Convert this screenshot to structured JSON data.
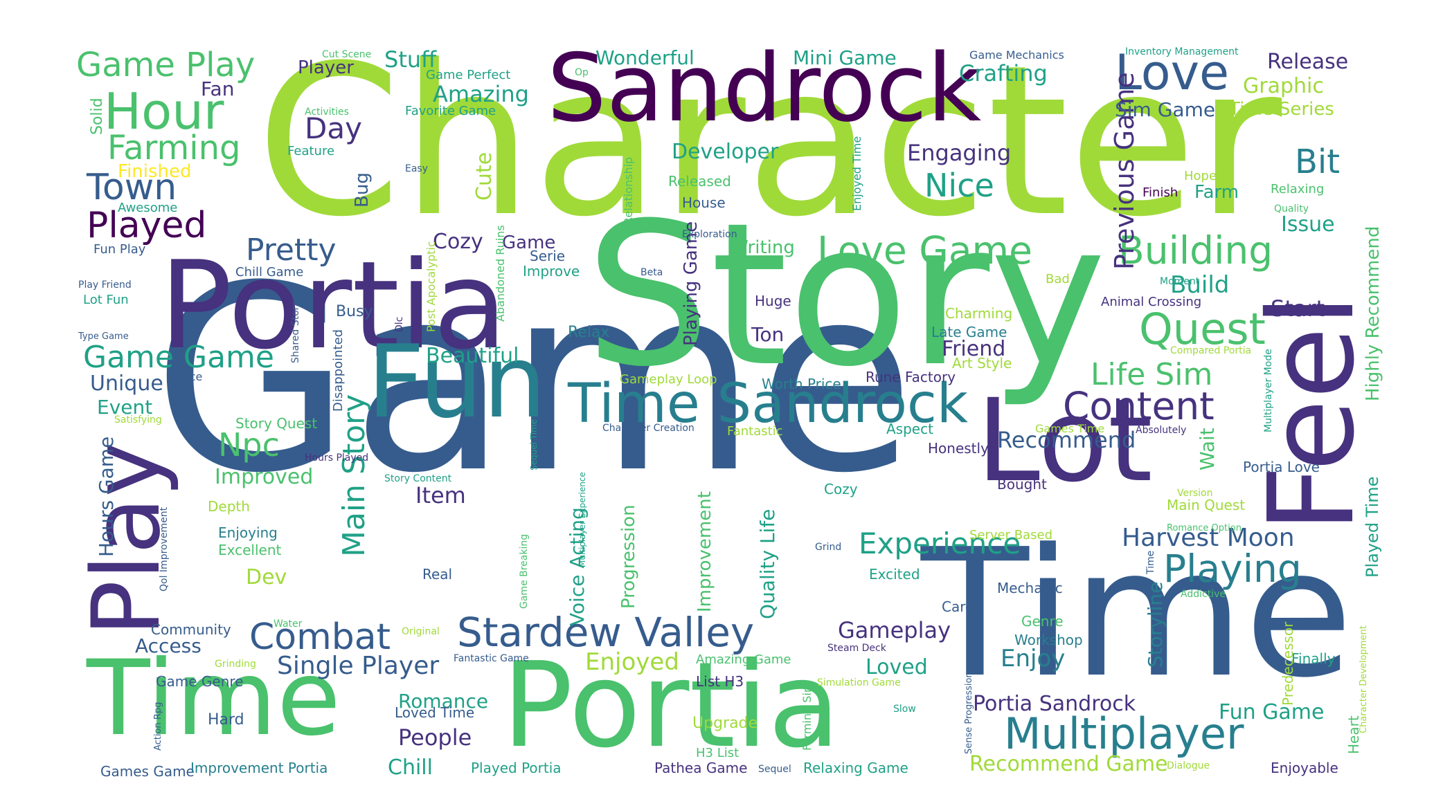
{
  "palette": {
    "lime": "#a0da39",
    "green": "#4ac16d",
    "teal": "#1fa187",
    "blue_teal": "#277f8e",
    "blue": "#365c8d",
    "indigo": "#46327e",
    "purple": "#440154",
    "yellow": "#fde725"
  },
  "words": [
    {
      "text": "Character",
      "color": "lime"
    },
    {
      "text": "Game",
      "color": "blue"
    },
    {
      "text": "Story",
      "color": "green"
    },
    {
      "text": "Time",
      "color": "blue"
    },
    {
      "text": "Portia",
      "color": "indigo"
    },
    {
      "text": "Portia",
      "color": "green"
    },
    {
      "text": "Time",
      "color": "green"
    },
    {
      "text": "Sandrock",
      "color": "purple"
    },
    {
      "text": "Fun",
      "color": "blue_teal"
    },
    {
      "text": "Lot",
      "color": "indigo"
    },
    {
      "text": "Feel",
      "color": "indigo"
    },
    {
      "text": "Play",
      "color": "indigo"
    },
    {
      "text": "Time Sandrock",
      "color": "blue_teal"
    },
    {
      "text": "Love",
      "color": "blue"
    },
    {
      "text": "Hour",
      "color": "green"
    },
    {
      "text": "Stardew Valley",
      "color": "blue"
    },
    {
      "text": "Multiplayer",
      "color": "blue_teal"
    },
    {
      "text": "Quest",
      "color": "green"
    },
    {
      "text": "Love Game",
      "color": "green"
    },
    {
      "text": "Building",
      "color": "green"
    },
    {
      "text": "Content",
      "color": "indigo"
    },
    {
      "text": "Playing",
      "color": "blue_teal"
    },
    {
      "text": "Combat",
      "color": "blue"
    },
    {
      "text": "Played",
      "color": "purple"
    },
    {
      "text": "Farming",
      "color": "green"
    },
    {
      "text": "Town",
      "color": "blue"
    },
    {
      "text": "Game Play",
      "color": "green"
    },
    {
      "text": "Pretty",
      "color": "blue"
    },
    {
      "text": "Game Game",
      "color": "teal"
    },
    {
      "text": "Life Sim",
      "color": "green"
    },
    {
      "text": "Experience",
      "color": "teal"
    },
    {
      "text": "Nice",
      "color": "teal"
    },
    {
      "text": "Bit",
      "color": "blue_teal"
    },
    {
      "text": "Main Story",
      "color": "teal"
    },
    {
      "text": "Previous Game",
      "color": "indigo"
    },
    {
      "text": "Npc",
      "color": "green"
    },
    {
      "text": "Day",
      "color": "indigo"
    },
    {
      "text": "Single Player",
      "color": "blue"
    },
    {
      "text": "Harvest Moon",
      "color": "blue"
    },
    {
      "text": "Gameplay",
      "color": "indigo"
    },
    {
      "text": "Enjoyed",
      "color": "lime"
    },
    {
      "text": "Enjoy",
      "color": "blue_teal"
    },
    {
      "text": "Portia Sandrock",
      "color": "indigo"
    },
    {
      "text": "Fun Game",
      "color": "teal"
    },
    {
      "text": "Recommend Game",
      "color": "lime"
    },
    {
      "text": "Amazing",
      "color": "teal"
    },
    {
      "text": "Wonderful",
      "color": "teal"
    },
    {
      "text": "Mini Game",
      "color": "teal"
    },
    {
      "text": "Crafting",
      "color": "teal"
    },
    {
      "text": "Release",
      "color": "indigo"
    },
    {
      "text": "Graphic",
      "color": "lime"
    },
    {
      "text": "Stuff",
      "color": "teal"
    },
    {
      "text": "Player",
      "color": "indigo"
    },
    {
      "text": "Developer",
      "color": "teal"
    },
    {
      "text": "Engaging",
      "color": "indigo"
    },
    {
      "text": "Beautiful",
      "color": "teal"
    },
    {
      "text": "Recommend",
      "color": "blue"
    },
    {
      "text": "Friend",
      "color": "indigo"
    },
    {
      "text": "Build",
      "color": "teal"
    },
    {
      "text": "Start",
      "color": "indigo"
    },
    {
      "text": "Issue",
      "color": "teal"
    },
    {
      "text": "Cozy",
      "color": "indigo"
    },
    {
      "text": "Writing",
      "color": "green"
    },
    {
      "text": "Unique",
      "color": "blue"
    },
    {
      "text": "Event",
      "color": "teal"
    },
    {
      "text": "Improved",
      "color": "green"
    },
    {
      "text": "Item",
      "color": "indigo"
    },
    {
      "text": "People",
      "color": "indigo"
    },
    {
      "text": "Chill",
      "color": "teal"
    },
    {
      "text": "Romance",
      "color": "teal"
    },
    {
      "text": "Loved",
      "color": "teal"
    },
    {
      "text": "Access",
      "color": "blue"
    },
    {
      "text": "Dev",
      "color": "lime"
    },
    {
      "text": "Hours Game",
      "color": "blue"
    },
    {
      "text": "Voice Acting",
      "color": "teal"
    },
    {
      "text": "Quality Life",
      "color": "teal"
    },
    {
      "text": "Storyline",
      "color": "blue_teal"
    },
    {
      "text": "Highly Recommend",
      "color": "green"
    },
    {
      "text": "Played Time",
      "color": "teal"
    },
    {
      "text": "Wait",
      "color": "green"
    },
    {
      "text": "Sim Game",
      "color": "blue"
    },
    {
      "text": "Time Series",
      "color": "lime"
    },
    {
      "text": "Farm",
      "color": "teal"
    },
    {
      "text": "Fan",
      "color": "indigo"
    },
    {
      "text": "Bug",
      "color": "blue"
    },
    {
      "text": "Cute",
      "color": "lime"
    },
    {
      "text": "Ton",
      "color": "indigo"
    },
    {
      "text": "Relax",
      "color": "blue_teal"
    },
    {
      "text": "Huge",
      "color": "indigo"
    },
    {
      "text": "Busy",
      "color": "blue"
    },
    {
      "text": "Improvement",
      "color": "green"
    },
    {
      "text": "Progression",
      "color": "green"
    },
    {
      "text": "Playing Game",
      "color": "indigo"
    },
    {
      "text": "Finished",
      "color": "yellow"
    },
    {
      "text": "Solid",
      "color": "green"
    },
    {
      "text": "Upgrade",
      "color": "lime"
    },
    {
      "text": "Hard",
      "color": "blue"
    },
    {
      "text": "Community",
      "color": "blue"
    },
    {
      "text": "Game Genre",
      "color": "blue"
    },
    {
      "text": "Games Game",
      "color": "blue"
    },
    {
      "text": "Improvement Portia",
      "color": "blue_teal"
    },
    {
      "text": "Played Portia",
      "color": "teal"
    },
    {
      "text": "Pathea Game",
      "color": "indigo"
    },
    {
      "text": "Relaxing Game",
      "color": "teal"
    },
    {
      "text": "Enjoyable",
      "color": "indigo"
    },
    {
      "text": "Loved Time",
      "color": "blue"
    },
    {
      "text": "Mechanic",
      "color": "blue"
    },
    {
      "text": "Genre",
      "color": "green"
    },
    {
      "text": "Workshop",
      "color": "blue_teal"
    },
    {
      "text": "Care",
      "color": "blue"
    },
    {
      "text": "Finally",
      "color": "teal"
    },
    {
      "text": "Heart",
      "color": "green"
    },
    {
      "text": "Predecessor",
      "color": "lime"
    },
    {
      "text": "Bought",
      "color": "indigo"
    },
    {
      "text": "Portia Love",
      "color": "blue"
    },
    {
      "text": "Main Quest",
      "color": "lime"
    },
    {
      "text": "Honestly",
      "color": "indigo"
    },
    {
      "text": "Aspect",
      "color": "teal"
    },
    {
      "text": "Fantastic",
      "color": "lime"
    },
    {
      "text": "Cozy",
      "color": "teal"
    },
    {
      "text": "Excited",
      "color": "teal"
    },
    {
      "text": "Real",
      "color": "blue"
    },
    {
      "text": "Depth",
      "color": "lime"
    },
    {
      "text": "Enjoying",
      "color": "blue_teal"
    },
    {
      "text": "Excellent",
      "color": "green"
    },
    {
      "text": "Story Quest",
      "color": "green"
    },
    {
      "text": "Charming",
      "color": "lime"
    },
    {
      "text": "Late Game",
      "color": "blue_teal"
    },
    {
      "text": "Art Style",
      "color": "lime"
    },
    {
      "text": "Rune Factory",
      "color": "indigo"
    },
    {
      "text": "Worth Price",
      "color": "blue_teal"
    },
    {
      "text": "Gameplay Loop",
      "color": "lime"
    },
    {
      "text": "Server Based",
      "color": "lime"
    },
    {
      "text": "Released",
      "color": "green"
    },
    {
      "text": "House",
      "color": "blue"
    },
    {
      "text": "Improve",
      "color": "teal"
    },
    {
      "text": "Game",
      "color": "indigo"
    },
    {
      "text": "Serie",
      "color": "blue"
    },
    {
      "text": "Chill Game",
      "color": "blue"
    },
    {
      "text": "Lot Fun",
      "color": "teal"
    },
    {
      "text": "Awesome",
      "color": "teal"
    },
    {
      "text": "Fun Play",
      "color": "blue"
    },
    {
      "text": "Feature",
      "color": "teal"
    },
    {
      "text": "Favorite Game",
      "color": "teal"
    },
    {
      "text": "Game Perfect",
      "color": "teal"
    },
    {
      "text": "Hope",
      "color": "lime"
    },
    {
      "text": "Finish",
      "color": "purple"
    },
    {
      "text": "Relaxing",
      "color": "green"
    },
    {
      "text": "Game Mechanics",
      "color": "blue"
    },
    {
      "text": "Inventory Management",
      "color": "teal"
    },
    {
      "text": "Cut Scene",
      "color": "green"
    },
    {
      "text": "Activities",
      "color": "green"
    },
    {
      "text": "Easy",
      "color": "blue"
    },
    {
      "text": "Op",
      "color": "green"
    },
    {
      "text": "Exploration",
      "color": "blue"
    },
    {
      "text": "Quality",
      "color": "green"
    },
    {
      "text": "Beta",
      "color": "blue"
    },
    {
      "text": "Bad",
      "color": "lime"
    },
    {
      "text": "Moment",
      "color": "teal"
    },
    {
      "text": "Animal Crossing",
      "color": "indigo"
    },
    {
      "text": "Compared Portia",
      "color": "lime"
    },
    {
      "text": "Absolutely",
      "color": "indigo"
    },
    {
      "text": "Games Time",
      "color": "lime"
    },
    {
      "text": "Character Creation",
      "color": "blue"
    },
    {
      "text": "Play Friend",
      "color": "blue"
    },
    {
      "text": "Type Game",
      "color": "blue"
    },
    {
      "text": "Pace",
      "color": "blue"
    },
    {
      "text": "Satisfying",
      "color": "lime"
    },
    {
      "text": "Hours Played",
      "color": "indigo"
    },
    {
      "text": "Story Content",
      "color": "teal"
    },
    {
      "text": "Version",
      "color": "lime"
    },
    {
      "text": "Romance Option",
      "color": "green"
    },
    {
      "text": "Grind",
      "color": "blue"
    },
    {
      "text": "Addictive",
      "color": "green"
    },
    {
      "text": "Water",
      "color": "green"
    },
    {
      "text": "Original",
      "color": "lime"
    },
    {
      "text": "Grinding",
      "color": "lime"
    },
    {
      "text": "Fantastic Game",
      "color": "blue"
    },
    {
      "text": "Amazing Game",
      "color": "green"
    },
    {
      "text": "Steam Deck",
      "color": "indigo"
    },
    {
      "text": "Simulation Game",
      "color": "lime"
    },
    {
      "text": "Slow",
      "color": "teal"
    },
    {
      "text": "List H3",
      "color": "indigo"
    },
    {
      "text": "H3 List",
      "color": "green"
    },
    {
      "text": "Sequel",
      "color": "blue"
    },
    {
      "text": "Dialogue",
      "color": "lime"
    },
    {
      "text": "Relationship",
      "color": "green"
    },
    {
      "text": "Post Apocalyptic",
      "color": "lime"
    },
    {
      "text": "Abandoned Ruins",
      "color": "green"
    },
    {
      "text": "Shared Storage",
      "color": "blue"
    },
    {
      "text": "Dlc",
      "color": "indigo"
    },
    {
      "text": "Disappointed",
      "color": "blue"
    },
    {
      "text": "Enjoyed Time",
      "color": "teal"
    },
    {
      "text": "Sequel Time",
      "color": "teal"
    },
    {
      "text": "Multiplayer Experience",
      "color": "teal"
    },
    {
      "text": "Game Breaking",
      "color": "green"
    },
    {
      "text": "Qol Improvement",
      "color": "blue"
    },
    {
      "text": "Action Rpg",
      "color": "blue"
    },
    {
      "text": "Farming Sim",
      "color": "green"
    },
    {
      "text": "Sense Progression",
      "color": "blue"
    },
    {
      "text": "Character Development",
      "color": "lime"
    },
    {
      "text": "Time",
      "color": "blue"
    },
    {
      "text": "Multiplayer Mode",
      "color": "teal"
    }
  ]
}
